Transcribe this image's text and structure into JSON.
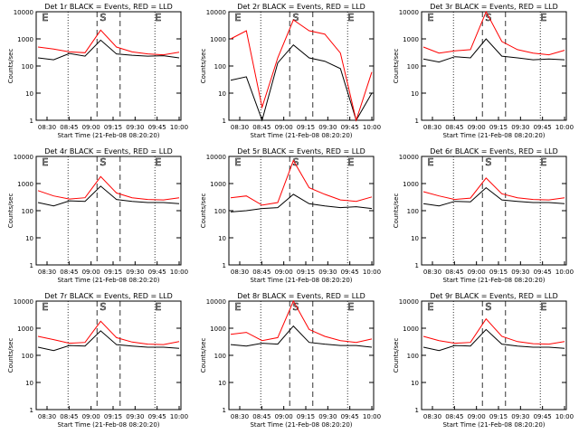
{
  "figure": {
    "background": "#ffffff"
  },
  "chart_data": [
    {
      "type": "line",
      "title": "Det 1r BLACK = Events, RED = LLD",
      "xlabel": "Start Time (21-Feb-08 08:20:20)",
      "ylabel": "Counts/sec",
      "x_ticks": [
        "08:30",
        "08:45",
        "09:00",
        "09:15",
        "09:30",
        "09:45",
        "10:00"
      ],
      "y_ticks": [
        "1",
        "10",
        "100",
        "1000",
        "10000"
      ],
      "y_scale": "log",
      "ylim": [
        1,
        10000
      ],
      "markers": [
        "S",
        "E"
      ],
      "series": [
        {
          "color": "#000000",
          "values": [
            200,
            170,
            290,
            230,
            900,
            280,
            250,
            230,
            240,
            200
          ]
        },
        {
          "color": "#ff0000",
          "values": [
            500,
            420,
            330,
            310,
            2100,
            500,
            330,
            280,
            260,
            320
          ]
        }
      ]
    },
    {
      "type": "line",
      "title": "Det 2r BLACK = Events, RED = LLD",
      "xlabel": "Start Time (21-Feb-08 08:20:20)",
      "ylabel": "Counts/sec",
      "x_ticks": [
        "08:30",
        "08:45",
        "09:00",
        "09:15",
        "09:30",
        "09:45",
        "10:00"
      ],
      "y_ticks": [
        "1",
        "10",
        "100",
        "1000",
        "10000"
      ],
      "y_scale": "log",
      "ylim": [
        1,
        10000
      ],
      "markers": [
        "S",
        "E"
      ],
      "series": [
        {
          "color": "#000000",
          "values": [
            30,
            40,
            1,
            130,
            600,
            200,
            150,
            80,
            1,
            10
          ]
        },
        {
          "color": "#ff0000",
          "values": [
            1000,
            2000,
            3,
            200,
            5000,
            2000,
            1500,
            300,
            1,
            60
          ]
        }
      ]
    },
    {
      "type": "line",
      "title": "Det 3r BLACK = Events, RED = LLD",
      "xlabel": "Start Time (21-Feb-08 08:20:20)",
      "ylabel": "Counts/sec",
      "x_ticks": [
        "08:30",
        "08:45",
        "09:00",
        "09:15",
        "09:30",
        "09:45",
        "10:00"
      ],
      "y_ticks": [
        "1",
        "10",
        "100",
        "1000",
        "10000"
      ],
      "y_scale": "log",
      "ylim": [
        1,
        10000
      ],
      "markers": [
        "S",
        "E"
      ],
      "series": [
        {
          "color": "#000000",
          "values": [
            180,
            140,
            220,
            200,
            1000,
            230,
            200,
            170,
            180,
            170
          ]
        },
        {
          "color": "#ff0000",
          "values": [
            500,
            300,
            360,
            400,
            10000,
            800,
            400,
            300,
            260,
            380
          ]
        }
      ]
    },
    {
      "type": "line",
      "title": "Det 4r BLACK = Events, RED = LLD",
      "xlabel": "Start Time (21-Feb-08 08:20:20)",
      "ylabel": "Counts/sec",
      "x_ticks": [
        "08:30",
        "08:45",
        "09:00",
        "09:15",
        "09:30",
        "09:45",
        "10:00"
      ],
      "y_ticks": [
        "1",
        "10",
        "100",
        "1000",
        "10000"
      ],
      "y_scale": "log",
      "ylim": [
        1,
        10000
      ],
      "markers": [
        "S",
        "E"
      ],
      "series": [
        {
          "color": "#000000",
          "values": [
            200,
            150,
            230,
            220,
            800,
            260,
            220,
            200,
            200,
            180
          ]
        },
        {
          "color": "#ff0000",
          "values": [
            550,
            350,
            270,
            300,
            1800,
            450,
            300,
            260,
            250,
            300
          ]
        }
      ]
    },
    {
      "type": "line",
      "title": "Det 5r BLACK = Events, RED = LLD",
      "xlabel": "Start Time (21-Feb-08 08:20:20)",
      "ylabel": "Counts/sec",
      "x_ticks": [
        "08:30",
        "08:45",
        "09:00",
        "09:15",
        "09:30",
        "09:45",
        "10:00"
      ],
      "y_ticks": [
        "1",
        "10",
        "100",
        "1000",
        "10000"
      ],
      "y_scale": "log",
      "ylim": [
        1,
        10000
      ],
      "markers": [
        "S",
        "E"
      ],
      "series": [
        {
          "color": "#000000",
          "values": [
            90,
            100,
            120,
            130,
            400,
            180,
            150,
            130,
            140,
            120
          ]
        },
        {
          "color": "#ff0000",
          "values": [
            300,
            350,
            160,
            200,
            7000,
            700,
            400,
            250,
            220,
            320
          ]
        }
      ]
    },
    {
      "type": "line",
      "title": "Det 6r BLACK = Events, RED = LLD",
      "xlabel": "Start Time (21-Feb-08 08:20:20)",
      "ylabel": "Counts/sec",
      "x_ticks": [
        "08:30",
        "08:45",
        "09:00",
        "09:15",
        "09:30",
        "09:45",
        "10:00"
      ],
      "y_ticks": [
        "1",
        "10",
        "100",
        "1000",
        "10000"
      ],
      "y_scale": "log",
      "ylim": [
        1,
        10000
      ],
      "markers": [
        "S",
        "E"
      ],
      "series": [
        {
          "color": "#000000",
          "values": [
            180,
            150,
            220,
            210,
            700,
            250,
            220,
            200,
            200,
            180
          ]
        },
        {
          "color": "#ff0000",
          "values": [
            500,
            350,
            260,
            290,
            1600,
            420,
            300,
            260,
            250,
            300
          ]
        }
      ]
    },
    {
      "type": "line",
      "title": "Det 7r BLACK = Events, RED = LLD",
      "xlabel": "Start Time (21-Feb-08 08:20:20)",
      "ylabel": "Counts/sec",
      "x_ticks": [
        "08:30",
        "08:45",
        "09:00",
        "09:15",
        "09:30",
        "09:45",
        "10:00"
      ],
      "y_ticks": [
        "1",
        "10",
        "100",
        "1000",
        "10000"
      ],
      "y_scale": "log",
      "ylim": [
        1,
        10000
      ],
      "markers": [
        "S",
        "E"
      ],
      "series": [
        {
          "color": "#000000",
          "values": [
            200,
            150,
            230,
            220,
            800,
            250,
            220,
            200,
            200,
            180
          ]
        },
        {
          "color": "#ff0000",
          "values": [
            500,
            380,
            280,
            300,
            1800,
            450,
            310,
            260,
            250,
            320
          ]
        }
      ]
    },
    {
      "type": "line",
      "title": "Det 8r BLACK = Events, RED = LLD",
      "xlabel": "Start Time (21-Feb-08 08:20:20)",
      "ylabel": "Counts/sec",
      "x_ticks": [
        "08:30",
        "08:45",
        "09:00",
        "09:15",
        "09:30",
        "09:45",
        "10:00"
      ],
      "y_ticks": [
        "1",
        "10",
        "100",
        "1000",
        "10000"
      ],
      "y_scale": "log",
      "ylim": [
        1,
        10000
      ],
      "markers": [
        "S",
        "E"
      ],
      "series": [
        {
          "color": "#000000",
          "values": [
            250,
            220,
            280,
            260,
            1200,
            300,
            260,
            230,
            230,
            200
          ]
        },
        {
          "color": "#ff0000",
          "values": [
            600,
            700,
            350,
            450,
            10000,
            900,
            500,
            350,
            300,
            400
          ]
        }
      ]
    },
    {
      "type": "line",
      "title": "Det 9r BLACK = Events, RED = LLD",
      "xlabel": "Start Time (21-Feb-08 08:20:20)",
      "ylabel": "Counts/sec",
      "x_ticks": [
        "08:30",
        "08:45",
        "09:00",
        "09:15",
        "09:30",
        "09:45",
        "10:00"
      ],
      "y_ticks": [
        "1",
        "10",
        "100",
        "1000",
        "10000"
      ],
      "y_scale": "log",
      "ylim": [
        1,
        10000
      ],
      "markers": [
        "S",
        "E"
      ],
      "series": [
        {
          "color": "#000000",
          "values": [
            200,
            150,
            230,
            220,
            900,
            260,
            220,
            200,
            200,
            180
          ]
        },
        {
          "color": "#ff0000",
          "values": [
            500,
            350,
            280,
            300,
            2200,
            500,
            320,
            270,
            260,
            320
          ]
        }
      ]
    }
  ]
}
